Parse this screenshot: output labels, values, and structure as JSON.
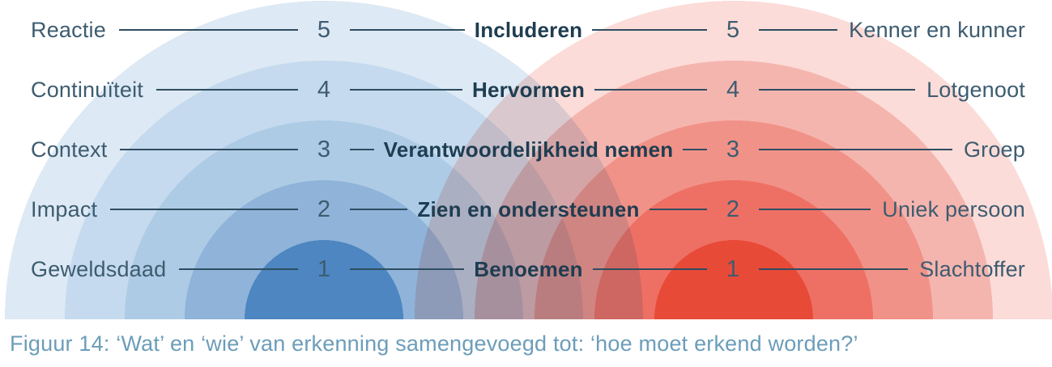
{
  "figure": {
    "caption": "Figuur 14: ‘Wat’ en ‘wie’ van erkenning samengevoegd tot: ‘hoe moet erkend worden?’",
    "rows": [
      {
        "level": "5",
        "left": "Reactie",
        "center": "Includeren",
        "right": "Kenner en kunner"
      },
      {
        "level": "4",
        "left": "Continuïteit",
        "center": "Hervormen",
        "right": "Lotgenoot"
      },
      {
        "level": "3",
        "left": "Context",
        "center": "Verantwoordelijkheid nemen",
        "right": "Groep"
      },
      {
        "level": "2",
        "left": "Impact",
        "center": "Zien en ondersteunen",
        "right": "Uniek persoon"
      },
      {
        "level": "1",
        "left": "Geweldsdaad",
        "center": "Benoemen",
        "right": "Slachtoffer"
      }
    ],
    "rings": {
      "blue_inner_to_outer": [
        "#4d86c1",
        "#8fb3d9",
        "#aecbe5",
        "#c5daee",
        "#dde9f4"
      ],
      "red_inner_to_outer": [
        "#e84a38",
        "#ee7065",
        "#f19288",
        "#f5b5af",
        "#fbdcd8"
      ]
    },
    "colors": {
      "term_text": "#3d5c70",
      "action_text": "#1e3d51",
      "line": "#2e4d60",
      "caption_text": "#6c9dba",
      "background": "#ffffff"
    }
  }
}
